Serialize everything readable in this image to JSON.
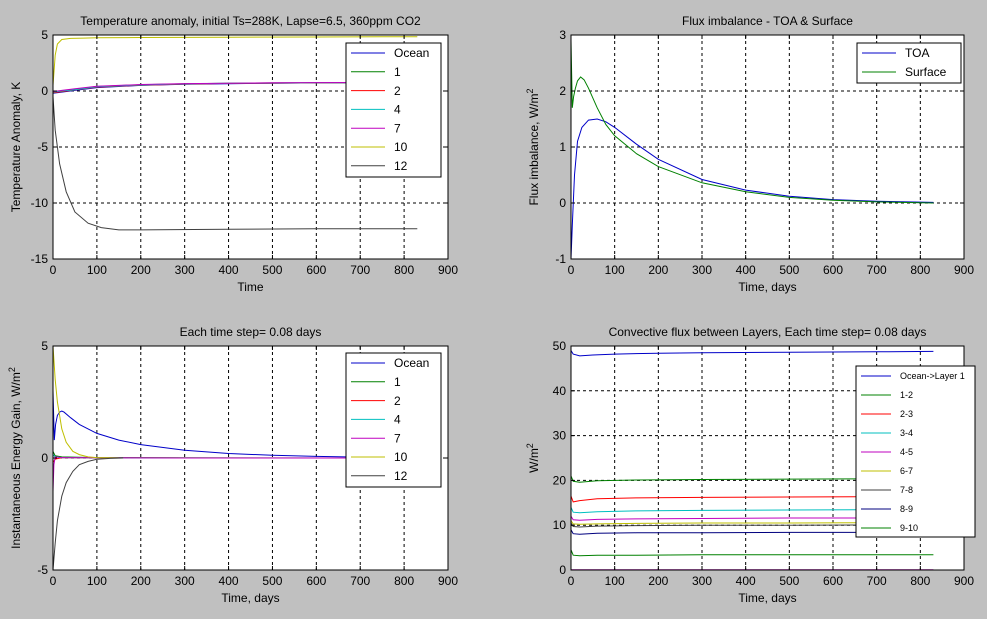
{
  "figure": {
    "background": "#c0c0c0",
    "axes_background": "#ffffff",
    "grid_color": "#000000"
  },
  "chart_data": [
    {
      "type": "line",
      "title": "Temperature anomaly, initial Ts=288K, Lapse=6.5, 360ppm CO2",
      "xlabel": "Time",
      "ylabel": "Temperature Anomaly, K",
      "xlim": [
        0,
        900
      ],
      "ylim": [
        -15,
        5
      ],
      "xticks": [
        0,
        100,
        200,
        300,
        400,
        500,
        600,
        700,
        800,
        900
      ],
      "yticks": [
        -15,
        -10,
        -5,
        0,
        5
      ],
      "grid": true,
      "legend_position": "top-right",
      "series": [
        {
          "name": "Ocean",
          "color": "#0000c8",
          "x": [
            0,
            20,
            50,
            100,
            200,
            300,
            400,
            500,
            600,
            700,
            830
          ],
          "y": [
            -0.2,
            -0.1,
            0.05,
            0.3,
            0.5,
            0.6,
            0.65,
            0.7,
            0.72,
            0.74,
            0.75
          ]
        },
        {
          "name": "1",
          "color": "#008000",
          "x": [
            0,
            20,
            50,
            100,
            200,
            300,
            400,
            500,
            600,
            700,
            830
          ],
          "y": [
            -0.1,
            0.0,
            0.15,
            0.4,
            0.55,
            0.65,
            0.7,
            0.72,
            0.74,
            0.75,
            0.76
          ]
        },
        {
          "name": "2",
          "color": "#ff0000",
          "x": [
            0,
            20,
            50,
            100,
            200,
            300,
            400,
            500,
            600,
            700,
            830
          ],
          "y": [
            -0.15,
            -0.05,
            0.1,
            0.35,
            0.52,
            0.62,
            0.68,
            0.7,
            0.72,
            0.73,
            0.74
          ]
        },
        {
          "name": "4",
          "color": "#00bfbf",
          "x": [
            0,
            20,
            50,
            100,
            200,
            300,
            400,
            500,
            600,
            700,
            830
          ],
          "y": [
            -0.1,
            0.0,
            0.12,
            0.38,
            0.54,
            0.63,
            0.69,
            0.71,
            0.73,
            0.74,
            0.75
          ]
        },
        {
          "name": "7",
          "color": "#bf00bf",
          "x": [
            0,
            20,
            50,
            100,
            200,
            300,
            400,
            500,
            600,
            700,
            830
          ],
          "y": [
            -0.05,
            0.05,
            0.2,
            0.42,
            0.58,
            0.66,
            0.7,
            0.73,
            0.75,
            0.76,
            0.77
          ]
        },
        {
          "name": "10",
          "color": "#bfbf00",
          "x": [
            0,
            5,
            10,
            20,
            40,
            70,
            100,
            200,
            400,
            600,
            830
          ],
          "y": [
            0.5,
            3.2,
            4.2,
            4.6,
            4.7,
            4.72,
            4.75,
            4.78,
            4.8,
            4.82,
            4.85
          ]
        },
        {
          "name": "12",
          "color": "#404040",
          "x": [
            0,
            5,
            15,
            30,
            50,
            80,
            110,
            150,
            200,
            400,
            600,
            830
          ],
          "y": [
            -0.5,
            -3.5,
            -6.5,
            -9,
            -10.8,
            -11.8,
            -12.2,
            -12.4,
            -12.4,
            -12.35,
            -12.3,
            -12.3
          ]
        }
      ]
    },
    {
      "type": "line",
      "title": "Flux imbalance - TOA & Surface",
      "xlabel": "Time, days",
      "ylabel": "Flux imbalance, W/m",
      "ylabel_sup": "2",
      "xlim": [
        0,
        900
      ],
      "ylim": [
        -1,
        3
      ],
      "xticks": [
        0,
        100,
        200,
        300,
        400,
        500,
        600,
        700,
        800,
        900
      ],
      "yticks": [
        -1,
        0,
        1,
        2,
        3
      ],
      "grid": true,
      "legend_position": "top-right",
      "series": [
        {
          "name": "TOA",
          "color": "#0000c8",
          "x": [
            0,
            3,
            8,
            15,
            25,
            40,
            60,
            80,
            100,
            150,
            200,
            300,
            400,
            500,
            600,
            700,
            830
          ],
          "y": [
            -1.0,
            -0.4,
            0.5,
            1.1,
            1.35,
            1.48,
            1.5,
            1.45,
            1.35,
            1.05,
            0.78,
            0.42,
            0.23,
            0.12,
            0.06,
            0.03,
            0.01
          ]
        },
        {
          "name": "Surface",
          "color": "#008000",
          "x": [
            0,
            3,
            6,
            10,
            15,
            22,
            30,
            40,
            60,
            80,
            100,
            150,
            200,
            300,
            400,
            500,
            600,
            700,
            830
          ],
          "y": [
            2.9,
            1.7,
            1.9,
            2.05,
            2.18,
            2.25,
            2.2,
            2.05,
            1.7,
            1.4,
            1.2,
            0.88,
            0.65,
            0.36,
            0.2,
            0.1,
            0.05,
            0.02,
            0.0
          ]
        }
      ]
    },
    {
      "type": "line",
      "title": "Each time step= 0.08 days",
      "xlabel": "Time, days",
      "ylabel": "Instantaneous Energy Gain, W/m",
      "ylabel_sup": "2",
      "xlim": [
        0,
        900
      ],
      "ylim": [
        -5,
        5
      ],
      "xticks": [
        0,
        100,
        200,
        300,
        400,
        500,
        600,
        700,
        800,
        900
      ],
      "yticks": [
        -5,
        0,
        5
      ],
      "grid": true,
      "legend_position": "top-right",
      "series": [
        {
          "name": "Ocean",
          "color": "#0000c8",
          "x": [
            0,
            3,
            6,
            10,
            15,
            20,
            25,
            40,
            60,
            100,
            150,
            200,
            300,
            400,
            500,
            600,
            700
          ],
          "y": [
            3.0,
            0.8,
            1.5,
            1.9,
            2.05,
            2.1,
            2.05,
            1.8,
            1.5,
            1.1,
            0.8,
            0.6,
            0.35,
            0.2,
            0.12,
            0.07,
            0.04
          ]
        },
        {
          "name": "1",
          "color": "#008000",
          "x": [
            0,
            5,
            20,
            100,
            300,
            700
          ],
          "y": [
            0.3,
            0.1,
            0.05,
            0.02,
            0.01,
            0.0
          ]
        },
        {
          "name": "2",
          "color": "#ff0000",
          "x": [
            0,
            5,
            20,
            100,
            300,
            700
          ],
          "y": [
            -0.2,
            -0.05,
            0.02,
            0.01,
            0.0,
            0.0
          ]
        },
        {
          "name": "4",
          "color": "#00bfbf",
          "x": [
            0,
            5,
            20,
            100,
            300,
            700
          ],
          "y": [
            0.15,
            0.05,
            0.02,
            0.01,
            0.0,
            0.0
          ]
        },
        {
          "name": "7",
          "color": "#bf00bf",
          "x": [
            0,
            2,
            5,
            20,
            100,
            300,
            700
          ],
          "y": [
            -1.5,
            -0.3,
            0.05,
            0.02,
            0.01,
            0.0,
            0.0
          ]
        },
        {
          "name": "10",
          "color": "#bfbf00",
          "x": [
            0,
            5,
            10,
            20,
            30,
            45,
            60,
            80,
            100,
            150
          ],
          "y": [
            5.0,
            3.5,
            2.5,
            1.3,
            0.7,
            0.3,
            0.15,
            0.05,
            0.02,
            0.0
          ]
        },
        {
          "name": "12",
          "color": "#404040",
          "x": [
            0,
            5,
            10,
            20,
            30,
            45,
            60,
            80,
            100,
            130,
            160
          ],
          "y": [
            -5.0,
            -3.8,
            -2.8,
            -1.7,
            -1.1,
            -0.6,
            -0.3,
            -0.15,
            -0.06,
            -0.02,
            0.0
          ]
        }
      ]
    },
    {
      "type": "line",
      "title": "Convective flux between Layers, Each time step= 0.08 days",
      "xlabel": "Time, days",
      "ylabel": "W/m",
      "ylabel_sup": "2",
      "xlim": [
        0,
        900
      ],
      "ylim": [
        0,
        50
      ],
      "xticks": [
        0,
        100,
        200,
        300,
        400,
        500,
        600,
        700,
        800,
        900
      ],
      "yticks": [
        0,
        10,
        20,
        30,
        40,
        50
      ],
      "grid": true,
      "legend_position": "right",
      "series": [
        {
          "name": "Ocean->Layer 1",
          "color": "#0000c8",
          "x": [
            0,
            5,
            20,
            50,
            100,
            200,
            300,
            500,
            700,
            830
          ],
          "y": [
            49.0,
            48.2,
            47.8,
            48.0,
            48.2,
            48.4,
            48.5,
            48.6,
            48.7,
            48.8
          ]
        },
        {
          "name": "1-2",
          "color": "#008000",
          "x": [
            0,
            5,
            20,
            60,
            150,
            300,
            500,
            830
          ],
          "y": [
            21.0,
            19.8,
            19.6,
            19.9,
            20.1,
            20.2,
            20.3,
            20.4
          ]
        },
        {
          "name": "2-3",
          "color": "#ff0000",
          "x": [
            0,
            5,
            20,
            60,
            150,
            300,
            500,
            830
          ],
          "y": [
            16.5,
            15.2,
            15.5,
            15.9,
            16.1,
            16.2,
            16.3,
            16.4
          ]
        },
        {
          "name": "3-4",
          "color": "#00bfbf",
          "x": [
            0,
            5,
            20,
            60,
            150,
            300,
            500,
            830
          ],
          "y": [
            14.0,
            12.9,
            12.8,
            13.0,
            13.2,
            13.3,
            13.4,
            13.5
          ]
        },
        {
          "name": "4-5",
          "color": "#bf00bf",
          "x": [
            0,
            5,
            20,
            60,
            150,
            300,
            500,
            830
          ],
          "y": [
            12.0,
            11.2,
            11.1,
            11.3,
            11.4,
            11.5,
            11.6,
            11.6
          ]
        },
        {
          "name": "6-7",
          "color": "#bfbf00",
          "x": [
            0,
            5,
            20,
            60,
            150,
            300,
            500,
            830
          ],
          "y": [
            11.0,
            10.3,
            10.2,
            10.3,
            10.4,
            10.5,
            10.5,
            10.6
          ]
        },
        {
          "name": "7-8",
          "color": "#404040",
          "x": [
            0,
            5,
            20,
            60,
            150,
            300,
            500,
            830
          ],
          "y": [
            10.5,
            9.7,
            9.6,
            9.8,
            9.9,
            10.0,
            10.0,
            10.1
          ]
        },
        {
          "name": "8-9",
          "color": "#00007f",
          "x": [
            0,
            5,
            20,
            60,
            150,
            300,
            500,
            830
          ],
          "y": [
            9.0,
            8.1,
            8.0,
            8.2,
            8.3,
            8.3,
            8.4,
            8.4
          ]
        },
        {
          "name": "9-10",
          "color": "#008000",
          "x": [
            0,
            5,
            20,
            60,
            150,
            300,
            500,
            830
          ],
          "y": [
            4.5,
            3.3,
            3.2,
            3.3,
            3.3,
            3.4,
            3.4,
            3.4
          ]
        },
        {
          "color": "#bf00bf",
          "x": [
            0,
            830
          ],
          "y": [
            0.05,
            0.05
          ]
        }
      ]
    }
  ]
}
